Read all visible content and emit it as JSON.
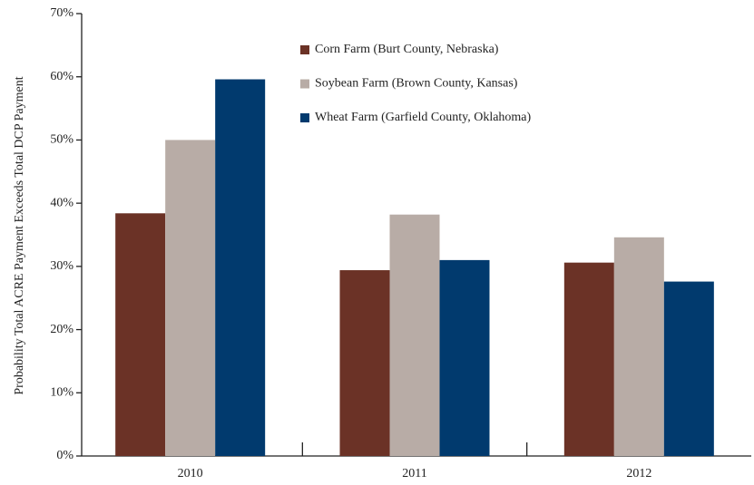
{
  "chart_data": {
    "type": "bar",
    "y_axis_label": "Probability Total ACRE Payment Exceeds Total DCP Payment",
    "categories": [
      "2010",
      "2011",
      "2012"
    ],
    "series": [
      {
        "name": "Corn Farm (Burt County, Nebraska)",
        "color": "#6b3226",
        "values": [
          38.4,
          29.4,
          30.6
        ]
      },
      {
        "name": "Soybean Farm (Brown County, Kansas)",
        "color": "#b8aca6",
        "values": [
          50,
          38.2,
          34.6
        ]
      },
      {
        "name": "Wheat Farm (Garfield County, Oklahoma)",
        "color": "#013a6e",
        "values": [
          59.6,
          31,
          27.6
        ]
      }
    ],
    "ylim": [
      0,
      70
    ],
    "yticks": [
      {
        "value": 0,
        "label": "0%"
      },
      {
        "value": 10,
        "label": "10%"
      },
      {
        "value": 20,
        "label": "20%"
      },
      {
        "value": 30,
        "label": "30%"
      },
      {
        "value": 40,
        "label": "40%"
      },
      {
        "value": 50,
        "label": "50%"
      },
      {
        "value": 60,
        "label": "60%"
      },
      {
        "value": 70,
        "label": "70%"
      }
    ],
    "legend": "top-center",
    "grid": false
  }
}
